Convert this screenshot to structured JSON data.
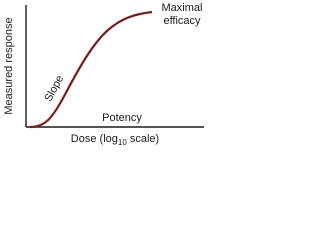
{
  "y_axis_label": "Measured response",
  "x_axis_label": {
    "text": "Dose (log",
    "subscript": "10",
    "suffix": " scale)"
  },
  "annotations": {
    "slope": "Slope",
    "potency": "Potency",
    "maximal_efficacy": [
      "Maximal",
      "efficacy"
    ]
  }
}
